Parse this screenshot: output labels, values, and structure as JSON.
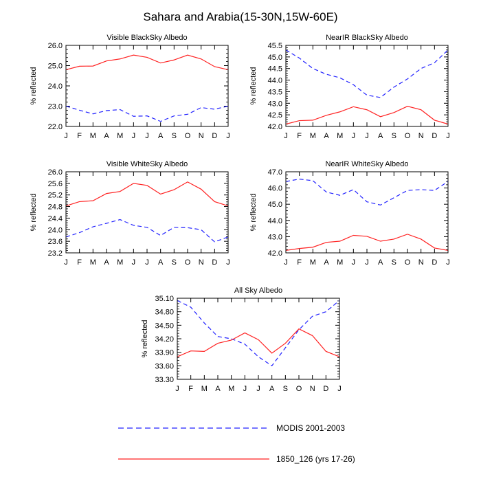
{
  "title": "Sahara and Arabia(15-30N,15W-60E)",
  "months": [
    "J",
    "F",
    "M",
    "A",
    "M",
    "J",
    "J",
    "A",
    "S",
    "O",
    "N",
    "D",
    "J"
  ],
  "legend": {
    "modis_label": "MODIS 2001-2003",
    "model_label": "1850_126 (yrs 17-26)",
    "modis_color": "#2222ff",
    "model_color": "#ff2222"
  },
  "chart_data": [
    {
      "type": "line",
      "title": "Visible BlackSky Albedo",
      "ylabel": "% reflected",
      "ylim": [
        22.0,
        26.0
      ],
      "yticks": [
        "22.0",
        "23.0",
        "24.0",
        "25.0",
        "26.0"
      ],
      "x": [
        "J",
        "F",
        "M",
        "A",
        "M",
        "J",
        "J",
        "A",
        "S",
        "O",
        "N",
        "D",
        "J"
      ],
      "series": [
        {
          "name": "MODIS 2001-2003",
          "values": [
            23.0,
            22.8,
            22.62,
            22.78,
            22.83,
            22.5,
            22.52,
            22.25,
            22.52,
            22.6,
            22.93,
            22.85,
            23.0
          ]
        },
        {
          "name": "1850_126 (yrs 17-26)",
          "values": [
            24.8,
            24.97,
            24.98,
            25.23,
            25.33,
            25.52,
            25.41,
            25.13,
            25.28,
            25.52,
            25.33,
            24.95,
            24.8
          ]
        }
      ]
    },
    {
      "type": "line",
      "title": "NearIR BlackSky Albedo",
      "ylabel": "% reflected",
      "ylim": [
        42.0,
        45.5
      ],
      "yticks": [
        "42.0",
        "42.5",
        "43.0",
        "43.5",
        "44.0",
        "44.5",
        "45.0",
        "45.5"
      ],
      "x": [
        "J",
        "F",
        "M",
        "A",
        "M",
        "J",
        "J",
        "A",
        "S",
        "O",
        "N",
        "D",
        "J"
      ],
      "series": [
        {
          "name": "MODIS 2001-2003",
          "values": [
            45.3,
            44.95,
            44.5,
            44.25,
            44.1,
            43.8,
            43.35,
            43.25,
            43.7,
            44.05,
            44.5,
            44.75,
            45.3
          ]
        },
        {
          "name": "1850_126 (yrs 17-26)",
          "values": [
            42.1,
            42.25,
            42.27,
            42.48,
            42.63,
            42.85,
            42.72,
            42.42,
            42.6,
            42.87,
            42.72,
            42.27,
            42.1
          ]
        }
      ]
    },
    {
      "type": "line",
      "title": "Visible WhiteSky Albedo",
      "ylabel": "% reflected",
      "ylim": [
        23.2,
        26.0
      ],
      "yticks": [
        "23.2",
        "23.6",
        "24.0",
        "24.4",
        "24.8",
        "25.2",
        "25.6",
        "26.0"
      ],
      "x": [
        "J",
        "F",
        "M",
        "A",
        "M",
        "J",
        "J",
        "A",
        "S",
        "O",
        "N",
        "D",
        "J"
      ],
      "series": [
        {
          "name": "MODIS 2001-2003",
          "values": [
            23.75,
            23.9,
            24.1,
            24.22,
            24.35,
            24.15,
            24.08,
            23.8,
            24.08,
            24.07,
            24.0,
            23.58,
            23.75
          ]
        },
        {
          "name": "1850_126 (yrs 17-26)",
          "values": [
            24.82,
            24.97,
            25.0,
            25.25,
            25.32,
            25.6,
            25.53,
            25.23,
            25.38,
            25.65,
            25.4,
            24.97,
            24.82
          ]
        }
      ]
    },
    {
      "type": "line",
      "title": "NearIR WhiteSky Albedo",
      "ylabel": "% reflected",
      "ylim": [
        42.0,
        47.0
      ],
      "yticks": [
        "42.0",
        "43.0",
        "44.0",
        "45.0",
        "46.0",
        "47.0"
      ],
      "x": [
        "J",
        "F",
        "M",
        "A",
        "M",
        "J",
        "J",
        "A",
        "S",
        "O",
        "N",
        "D",
        "J"
      ],
      "series": [
        {
          "name": "MODIS 2001-2003",
          "values": [
            46.4,
            46.55,
            46.45,
            45.75,
            45.55,
            45.9,
            45.15,
            44.95,
            45.4,
            45.85,
            45.9,
            45.85,
            46.4
          ]
        },
        {
          "name": "1850_126 (yrs 17-26)",
          "values": [
            42.15,
            42.27,
            42.35,
            42.65,
            42.72,
            43.08,
            43.02,
            42.72,
            42.85,
            43.15,
            42.85,
            42.3,
            42.15
          ]
        }
      ]
    },
    {
      "type": "line",
      "title": "All Sky Albedo",
      "ylabel": "% reflected",
      "ylim": [
        33.3,
        35.1
      ],
      "yticks": [
        "33.30",
        "33.60",
        "33.90",
        "34.20",
        "34.50",
        "34.80",
        "35.10"
      ],
      "x": [
        "J",
        "F",
        "M",
        "A",
        "M",
        "J",
        "J",
        "A",
        "S",
        "O",
        "N",
        "D",
        "J"
      ],
      "series": [
        {
          "name": "MODIS 2001-2003",
          "values": [
            35.05,
            34.9,
            34.55,
            34.25,
            34.2,
            34.08,
            33.8,
            33.6,
            34.0,
            34.4,
            34.7,
            34.8,
            35.05
          ]
        },
        {
          "name": "1850_126 (yrs 17-26)",
          "values": [
            33.8,
            33.93,
            33.92,
            34.1,
            34.17,
            34.33,
            34.18,
            33.88,
            34.1,
            34.42,
            34.27,
            33.92,
            33.8
          ]
        }
      ]
    }
  ]
}
